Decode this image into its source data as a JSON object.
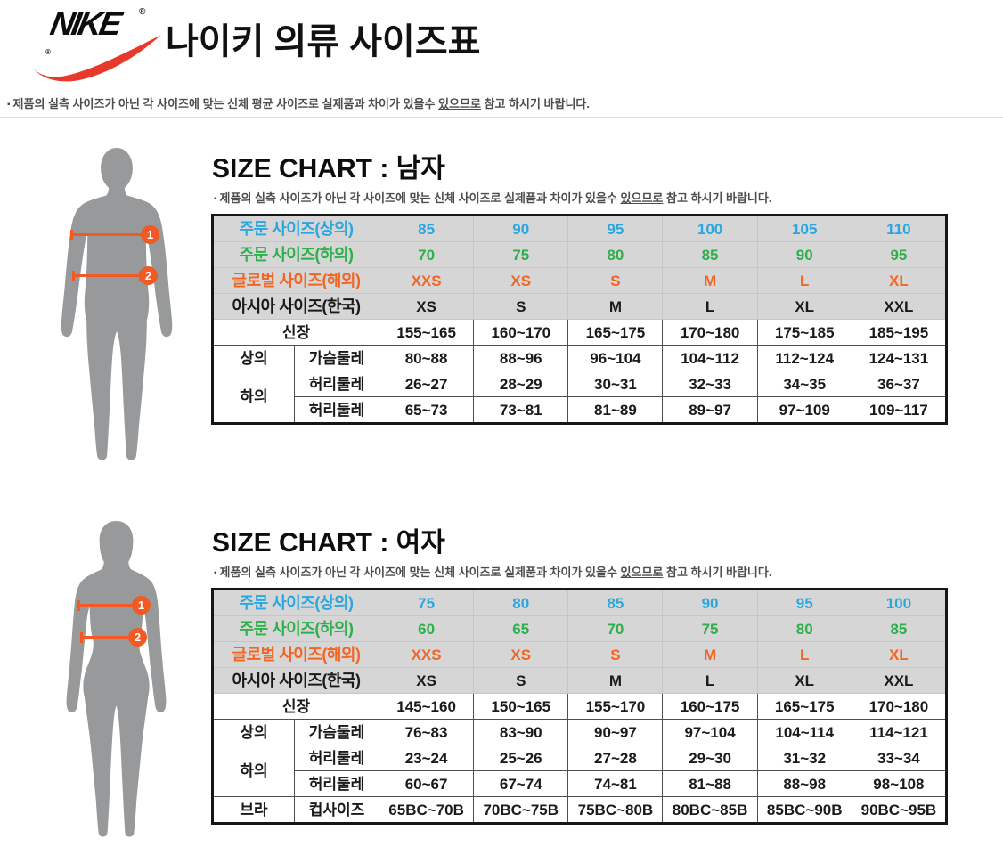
{
  "colors": {
    "swoosh_red": "#E8392B",
    "size_top_blue": "#2BA7E0",
    "size_bottom_green": "#2FAF4B",
    "size_global_orange": "#F26522",
    "size_asia_black": "#1A1A1A",
    "arrow_orange": "#F15A24",
    "silhouette_gray": "#97999B",
    "table_header_bg": "#D6D6D6"
  },
  "header": {
    "brand": "NIKE",
    "registered_mark": "®",
    "title": "나이키 의류 사이즈표",
    "note": {
      "bullet": "▪",
      "pre": "제품의 실측 사이즈가 아닌 각 사이즈에 맞는 신체 평균 사이즈로 실제품과 차이가 있을수 ",
      "underline": "있으므로",
      "post": " 참고 하시기 바랍니다."
    }
  },
  "sections": [
    {
      "id": "men",
      "title": "SIZE CHART : 남자",
      "note": {
        "bullet": "▪",
        "pre": "제품의 실측 사이즈가 아닌 각 사이즈에 맞는 신체 사이즈로 실제품과 차이가 있을수 ",
        "underline": "있으므로",
        "post": " 참고 하시기 바랍니다."
      },
      "figure": {
        "gender": "male",
        "markers": [
          "1",
          "2"
        ]
      },
      "table": {
        "header_rows": [
          {
            "label": "주문 사이즈(상의)",
            "color": "#2BA7E0",
            "values": [
              "85",
              "90",
              "95",
              "100",
              "105",
              "110"
            ]
          },
          {
            "label": "주문 사이즈(하의)",
            "color": "#2FAF4B",
            "values": [
              "70",
              "75",
              "80",
              "85",
              "90",
              "95"
            ]
          },
          {
            "label": "글로벌 사이즈(해외)",
            "color": "#F26522",
            "values": [
              "XXS",
              "XS",
              "S",
              "M",
              "L",
              "XL"
            ]
          },
          {
            "label": "아시아 사이즈(한국)",
            "color": "#1A1A1A",
            "values": [
              "XS",
              "S",
              "M",
              "L",
              "XL",
              "XXL"
            ]
          }
        ],
        "body_rows": [
          {
            "label1": {
              "text": "신장",
              "colspan": 2
            },
            "values": [
              "155~165",
              "160~170",
              "165~175",
              "170~180",
              "175~185",
              "185~195"
            ]
          },
          {
            "label1": {
              "text": "상의"
            },
            "label2": "가슴둘레",
            "values": [
              "80~88",
              "88~96",
              "96~104",
              "104~112",
              "112~124",
              "124~131"
            ]
          },
          {
            "label1": {
              "text": "하의",
              "rowspan": 2
            },
            "label2": "허리둘레",
            "values": [
              "26~27",
              "28~29",
              "30~31",
              "32~33",
              "34~35",
              "36~37"
            ]
          },
          {
            "label2": "허리둘레",
            "values": [
              "65~73",
              "73~81",
              "81~89",
              "89~97",
              "97~109",
              "109~117"
            ]
          }
        ]
      }
    },
    {
      "id": "women",
      "title": "SIZE CHART : 여자",
      "note": {
        "bullet": "▪",
        "pre": "제품의 실측 사이즈가 아닌 각 사이즈에 맞는 신체 사이즈로 실제품과 차이가 있을수 ",
        "underline": "있으므로",
        "post": " 참고 하시기 바랍니다."
      },
      "figure": {
        "gender": "female",
        "markers": [
          "1",
          "2"
        ]
      },
      "table": {
        "header_rows": [
          {
            "label": "주문 사이즈(상의)",
            "color": "#2BA7E0",
            "values": [
              "75",
              "80",
              "85",
              "90",
              "95",
              "100"
            ]
          },
          {
            "label": "주문 사이즈(하의)",
            "color": "#2FAF4B",
            "values": [
              "60",
              "65",
              "70",
              "75",
              "80",
              "85"
            ]
          },
          {
            "label": "글로벌 사이즈(해외)",
            "color": "#F26522",
            "values": [
              "XXS",
              "XS",
              "S",
              "M",
              "L",
              "XL"
            ]
          },
          {
            "label": "아시아 사이즈(한국)",
            "color": "#1A1A1A",
            "values": [
              "XS",
              "S",
              "M",
              "L",
              "XL",
              "XXL"
            ]
          }
        ],
        "body_rows": [
          {
            "label1": {
              "text": "신장",
              "colspan": 2
            },
            "values": [
              "145~160",
              "150~165",
              "155~170",
              "160~175",
              "165~175",
              "170~180"
            ]
          },
          {
            "label1": {
              "text": "상의"
            },
            "label2": "가슴둘레",
            "values": [
              "76~83",
              "83~90",
              "90~97",
              "97~104",
              "104~114",
              "114~121"
            ]
          },
          {
            "label1": {
              "text": "하의",
              "rowspan": 2
            },
            "label2": "허리둘레",
            "values": [
              "23~24",
              "25~26",
              "27~28",
              "29~30",
              "31~32",
              "33~34"
            ]
          },
          {
            "label2": "허리둘레",
            "values": [
              "60~67",
              "67~74",
              "74~81",
              "81~88",
              "88~98",
              "98~108"
            ]
          },
          {
            "label1": {
              "text": "브라"
            },
            "label2": "컵사이즈",
            "values": [
              "65BC~70B",
              "70BC~75B",
              "75BC~80B",
              "80BC~85B",
              "85BC~90B",
              "90BC~95B"
            ]
          }
        ]
      }
    }
  ]
}
